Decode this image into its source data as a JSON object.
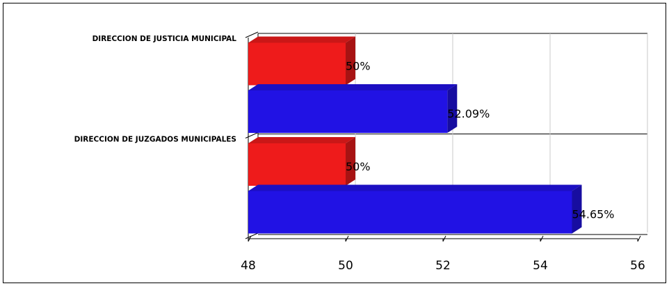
{
  "chart_data": {
    "type": "bar3d-horizontal",
    "categories": [
      "DIRECCION DE JUSTICIA MUNICIPAL",
      "DIRECCION DE JUZGADOS MUNICIPALES"
    ],
    "series": [
      {
        "color": "#ee1b1b",
        "values": [
          50,
          50
        ],
        "value_labels": [
          "50%",
          "50%"
        ]
      },
      {
        "color": "#2112e4",
        "values": [
          52.09,
          54.65
        ],
        "value_labels": [
          "52.09%",
          "54.65%"
        ]
      }
    ],
    "xlim": [
      48,
      56
    ],
    "xticks": [
      48,
      50,
      52,
      54,
      56
    ],
    "grid": true
  }
}
